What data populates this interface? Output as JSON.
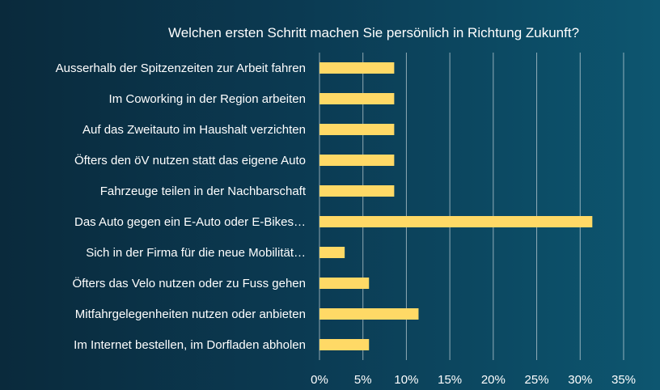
{
  "chart_data": {
    "type": "bar",
    "orientation": "horizontal",
    "title": "Welchen ersten Schritt machen Sie persönlich in Richtung Zukunft?",
    "categories": [
      "Ausserhalb der Spitzenzeiten zur Arbeit fahren",
      "Im Coworking in der Region arbeiten",
      "Auf das Zweitauto im Haushalt verzichten",
      "Öfters den öV nutzen statt das eigene Auto",
      "Fahrzeuge teilen in der Nachbarschaft",
      "Das Auto gegen ein E-Auto oder E-Bikes…",
      "Sich in der Firma für die neue Mobilität…",
      "Öfters das Velo nutzen oder zu Fuss gehen",
      "Mitfahrgelegenheiten nutzen oder anbieten",
      "Im Internet bestellen, im Dorfladen abholen"
    ],
    "values": [
      8.6,
      8.6,
      8.6,
      8.6,
      8.6,
      31.4,
      2.9,
      5.7,
      11.4,
      5.7
    ],
    "xlim": [
      0,
      35
    ],
    "x_ticks": [
      "0%",
      "5%",
      "10%",
      "15%",
      "20%",
      "25%",
      "30%",
      "35%"
    ],
    "x_tick_values": [
      0,
      5,
      10,
      15,
      20,
      25,
      30,
      35
    ],
    "grid": true,
    "legend": "none",
    "bar_color": "#ffd966",
    "background_color": "#0b3a52"
  }
}
